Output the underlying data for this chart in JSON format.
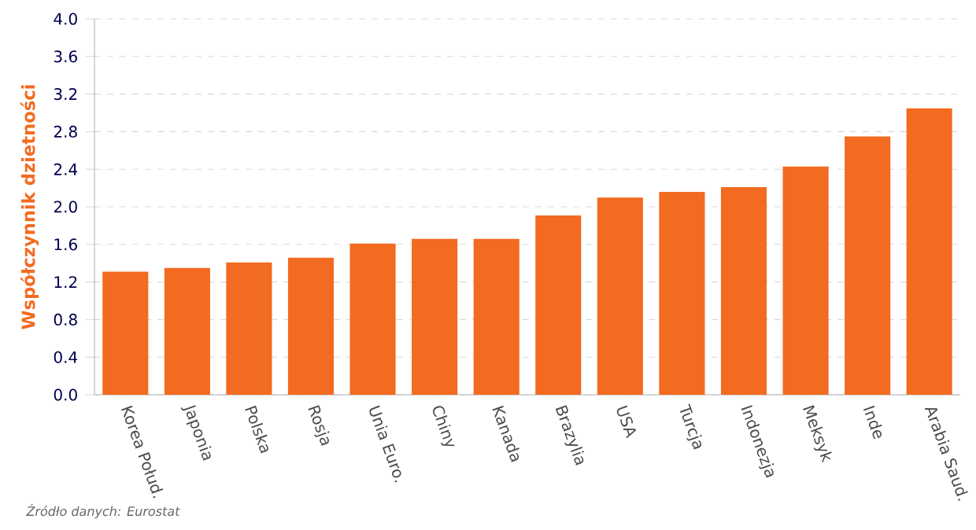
{
  "chart_data": {
    "type": "bar",
    "ylabel": "Współczynnik dzietności",
    "categories": [
      "Korea Połud.",
      "Japonia",
      "Polska",
      "Rosja",
      "Unia Euro.",
      "Chiny",
      "Kanada",
      "Brazylia",
      "USA",
      "Turcja",
      "Indonezja",
      "Meksyk",
      "Inde",
      "Arabia Saud."
    ],
    "values": [
      1.3,
      1.34,
      1.4,
      1.45,
      1.6,
      1.65,
      1.65,
      1.9,
      2.09,
      2.15,
      2.2,
      2.42,
      2.74,
      3.04
    ],
    "color": "#f26b21",
    "ylim": [
      0,
      4
    ],
    "yticks": [
      {
        "value": 0,
        "label": "0.0"
      },
      {
        "value": 0.4,
        "label": "0.4"
      },
      {
        "value": 0.8,
        "label": "0.8"
      },
      {
        "value": 1.2,
        "label": "1.2"
      },
      {
        "value": 1.6,
        "label": "1.6"
      },
      {
        "value": 2,
        "label": "2.0"
      },
      {
        "value": 2.4,
        "label": "2.4"
      },
      {
        "value": 2.8,
        "label": "2.8"
      },
      {
        "value": 3.2,
        "label": "3.2"
      },
      {
        "value": 3.6,
        "label": "3.6"
      },
      {
        "value": 4,
        "label": "4.0"
      }
    ],
    "grid": "y",
    "annotations": [
      "Źródło danych:  Eurostat"
    ]
  }
}
